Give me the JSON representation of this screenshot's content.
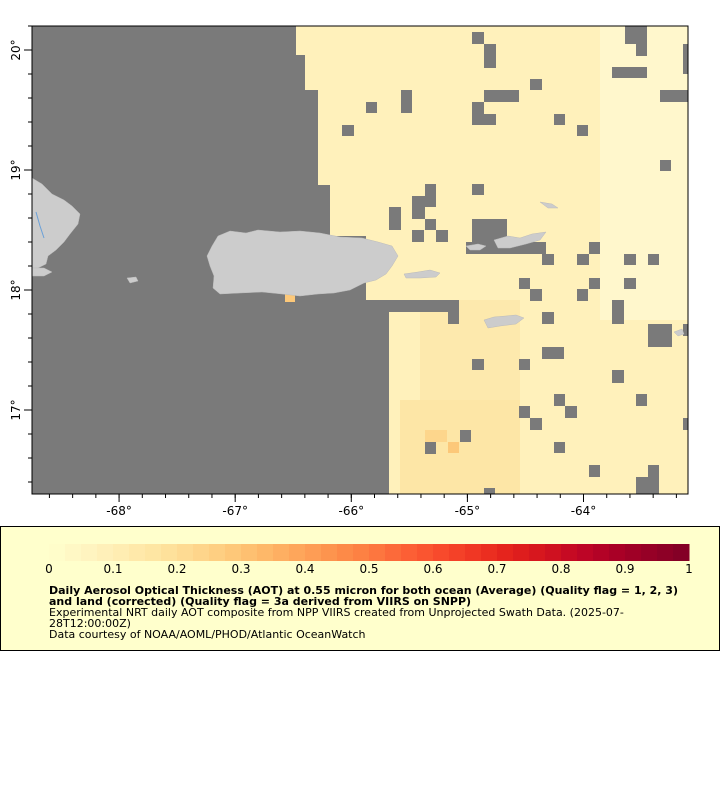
{
  "map": {
    "axes": {
      "x_ticks": [
        -68,
        -67,
        -66,
        -65,
        -64
      ],
      "x_tick_labels": [
        "-68°",
        "-67°",
        "-66°",
        "-65°",
        "-64°"
      ],
      "y_ticks": [
        17,
        18,
        19,
        20
      ],
      "y_tick_labels": [
        "17°",
        "18°",
        "19°",
        "20°"
      ],
      "lon_range": [
        -68.75,
        -63.1
      ],
      "lat_range": [
        16.3,
        20.2
      ]
    },
    "colors": {
      "no_data": "#7a7a7a",
      "land": "#cccccc",
      "aot_low": "#fff4c0",
      "aot_mid": "#fde2a0"
    }
  },
  "legend": {
    "colorbar_min": 0,
    "colorbar_max": 1,
    "tick_labels": [
      "0",
      "0.1",
      "0.2",
      "0.3",
      "0.4",
      "0.5",
      "0.6",
      "0.7",
      "0.8",
      "0.9",
      "1"
    ],
    "title": "Daily Aerosol Optical Thickness (AOT) at 0.55 micron for both ocean (Average) (Quality flag = 1, 2, 3) and land (corrected) (Quality flag = 3a derived from VIIRS on SNPP)",
    "description": "Experimental NRT daily AOT composite from NPP VIIRS created from Unprojected Swath Data. (2025-07-28T12:00:00Z)",
    "credit": "Data courtesy of NOAA/AOML/PHOD/Atlantic OceanWatch",
    "colors": [
      "#ffffcc",
      "#fff5c2",
      "#ffedb2",
      "#fee5a2",
      "#fed990",
      "#fecb7c",
      "#feb96a",
      "#fea55b",
      "#fd914c",
      "#fd7c41",
      "#fc6236",
      "#f84b2c",
      "#ef3523",
      "#e3211c",
      "#d2131f",
      "#bf0526",
      "#a80026",
      "#930026",
      "#800026"
    ]
  }
}
